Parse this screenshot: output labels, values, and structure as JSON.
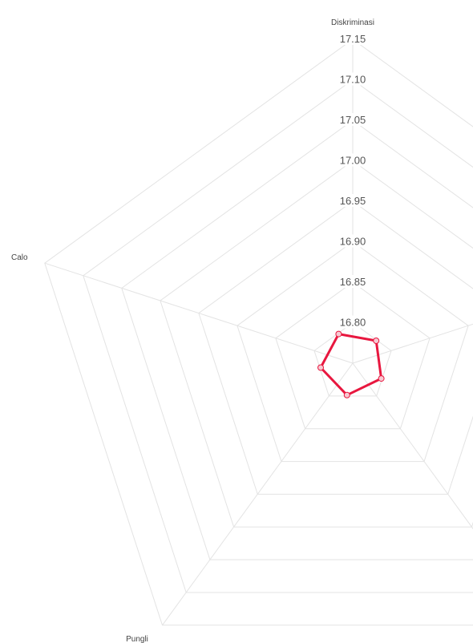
{
  "chart_data": {
    "type": "radar",
    "axes": [
      "Diskriminasi",
      "",
      "",
      "Pungli",
      "Calo"
    ],
    "ticks": [
      "16.80",
      "16.85",
      "16.90",
      "16.95",
      "17.00",
      "17.05",
      "17.10",
      "17.15"
    ],
    "rlim": [
      16.75,
      17.15
    ],
    "grid": true,
    "series": [
      {
        "values": [
          16.79,
          16.79,
          16.79,
          16.79,
          16.79
        ]
      }
    ],
    "colors": {
      "series": "#e8173f",
      "grid": "#e3e3e3"
    }
  }
}
